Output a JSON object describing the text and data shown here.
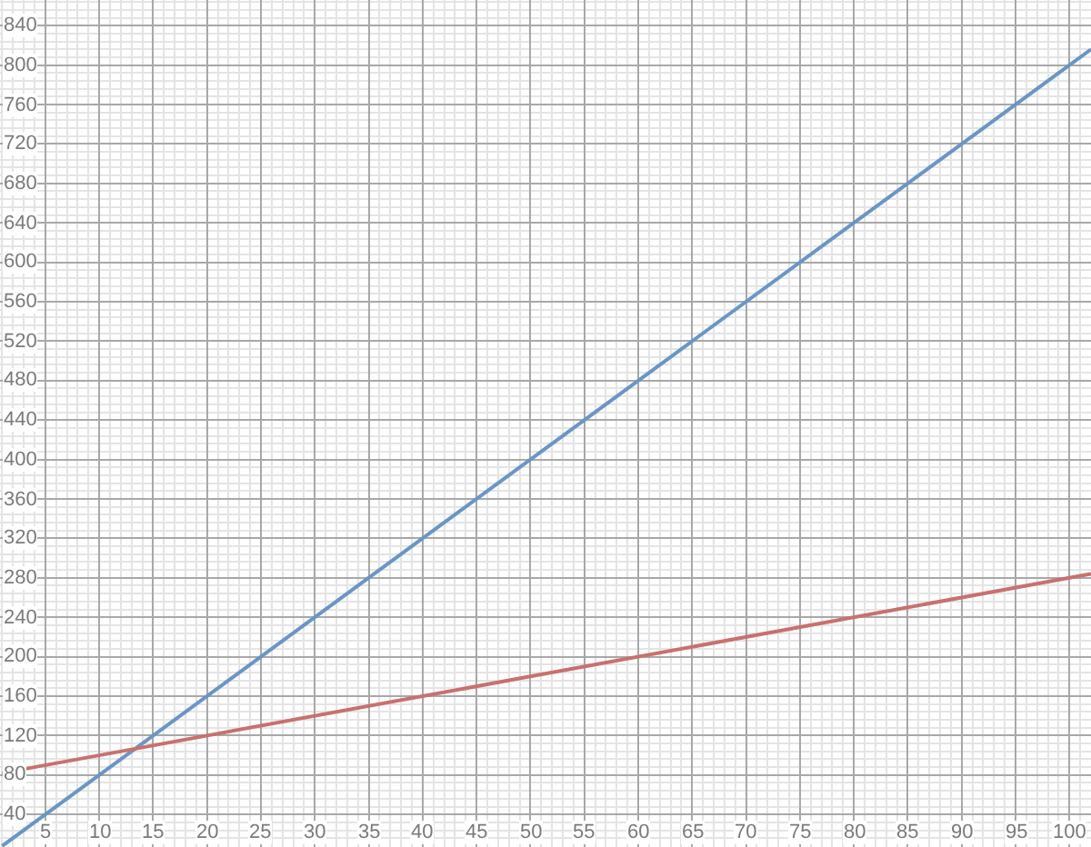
{
  "chart_data": {
    "type": "line",
    "series": [
      {
        "color": "#6a96c6",
        "x": [
          1,
          10,
          50,
          100,
          102
        ],
        "values": [
          8,
          80,
          400,
          800,
          816
        ]
      },
      {
        "color": "#c8716e",
        "x": [
          1,
          10,
          50,
          100,
          102
        ],
        "values": [
          82,
          100,
          180,
          280,
          284
        ]
      }
    ],
    "xlim": [
      0.8,
      102
    ],
    "ylim": [
      7,
      866
    ],
    "xticks": [
      5,
      10,
      15,
      20,
      25,
      30,
      35,
      40,
      45,
      50,
      55,
      60,
      65,
      70,
      75,
      80,
      85,
      90,
      95,
      100
    ],
    "yticks": [
      40,
      80,
      120,
      160,
      200,
      240,
      280,
      320,
      360,
      400,
      440,
      480,
      520,
      560,
      600,
      640,
      680,
      720,
      760,
      800,
      840
    ],
    "grid": true,
    "marker": "none",
    "line_style": "solid"
  }
}
